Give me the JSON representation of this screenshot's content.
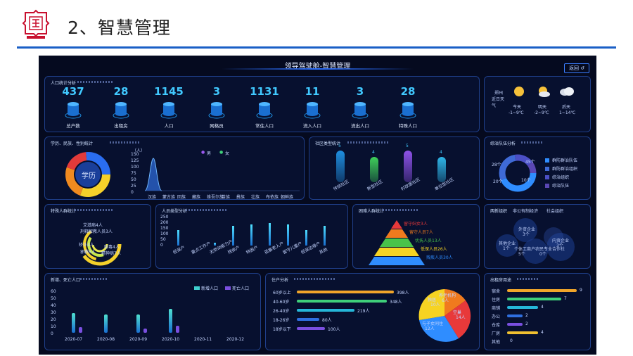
{
  "slide": {
    "title": "2、智慧管理"
  },
  "dashboard": {
    "title": "领导驾驶舱-智慧管理",
    "back_label": "返回 ↺"
  },
  "population": {
    "title": "人口统计分析",
    "stats": [
      {
        "value": "437",
        "label": "总户数"
      },
      {
        "value": "28",
        "label": "出租房"
      },
      {
        "value": "1145",
        "label": "人口"
      },
      {
        "value": "3",
        "label": "网格员"
      },
      {
        "value": "1131",
        "label": "常住人口"
      },
      {
        "value": "11",
        "label": "流入人口"
      },
      {
        "value": "3",
        "label": "流出人口"
      },
      {
        "value": "28",
        "label": "特殊人口"
      }
    ]
  },
  "weather": {
    "city": "郑州",
    "near_days": "近日天气",
    "days": [
      {
        "label": "今天",
        "temp": "-1~9℃",
        "icon": "sun-icon"
      },
      {
        "label": "明天",
        "temp": "-2~9℃",
        "icon": "partly-cloudy-icon"
      },
      {
        "label": "后天",
        "temp": "1~14℃",
        "icon": "cloudy-icon"
      }
    ]
  },
  "ethnic": {
    "title": "学历、民族、性别统计",
    "donut_label": "学历",
    "y_unit": "（人）",
    "legend": [
      "男",
      "女"
    ],
    "y_ticks": [
      "150",
      "125",
      "100",
      "75",
      "50",
      "25",
      "0"
    ],
    "categories": [
      "汉族",
      "蒙古族",
      "回族",
      "藏族",
      "维吾尔族",
      "苗族",
      "彝族",
      "壮族",
      "布依族",
      "朝鲜族"
    ]
  },
  "community": {
    "title": "社区类型统计",
    "bars": [
      {
        "value": "5",
        "label": "传统社区",
        "color": "#1f8fe0"
      },
      {
        "value": "4",
        "label": "新型社区",
        "color": "#3fcf5a"
      },
      {
        "value": "5",
        "label": "村改居社区",
        "color": "#8e52e8"
      },
      {
        "value": "4",
        "label": "单位型社区",
        "color": "#2fb6e8"
      }
    ]
  },
  "volunteer": {
    "title": "综治队伍分析",
    "labels": [
      "28个",
      "45个",
      "20个",
      "10个"
    ],
    "legend": [
      "群防群治队伍",
      "群防群治组织",
      "综治组织",
      "综治队伍"
    ],
    "colors": [
      "#2f8dff",
      "#3f6ad6",
      "#4b4fc6",
      "#5a47b4"
    ]
  },
  "special": {
    "title": "特殊人群统计",
    "labels": [
      "艾滋病4人",
      "刑释解教人员3人",
      "吸毒4人",
      "精神病7人",
      "矫正4人",
      "邪教6人"
    ]
  },
  "household": {
    "title": "人员类型分析",
    "y_ticks": [
      "250",
      "200",
      "150",
      "100",
      "50",
      "0"
    ],
    "categories": [
      "低保户",
      "重点工作户",
      "无劳动能力户",
      "残疾户",
      "特困户",
      "孤寡老人户",
      "留守儿童户",
      "低保边缘户",
      "其他"
    ]
  },
  "poverty": {
    "title": "困难人群统计",
    "levels": [
      {
        "label": "留守妇女3人",
        "color": "#e8393a"
      },
      {
        "label": "留守人员7人",
        "color": "#f07a1e"
      },
      {
        "label": "优抚人员13人",
        "color": "#49c34a"
      },
      {
        "label": "低保人员26人",
        "color": "#f6d322"
      },
      {
        "label": "残疾人员30人",
        "color": "#2f8dff"
      }
    ]
  },
  "org": {
    "title": "两新组织",
    "tabs": [
      "非公有制经济",
      "社会组织"
    ],
    "bubbles": [
      {
        "name": "外资企业",
        "count": "3个"
      },
      {
        "name": "其他企业",
        "count": "1个"
      },
      {
        "name": "个体工商户",
        "count": "5个"
      },
      {
        "name": "农民专业合作社",
        "count": "0个"
      },
      {
        "name": "内资企业",
        "count": "3个"
      }
    ]
  },
  "births": {
    "title": "新增、死亡人口",
    "legend": [
      "新增人口",
      "死亡人口"
    ],
    "y_ticks": [
      "60",
      "50",
      "40",
      "30",
      "20",
      "10",
      "0"
    ],
    "months": [
      "2020-07",
      "2020-08",
      "2020-09",
      "2020-10",
      "2020-11",
      "2020-12"
    ]
  },
  "age": {
    "title": "住户分析",
    "rows": [
      {
        "label": "60岁以上",
        "value": "398人",
        "color": "#f0a52a"
      },
      {
        "label": "40-60岁",
        "value": "348人",
        "color": "#3fcf7a"
      },
      {
        "label": "26-40岁",
        "value": "219人",
        "color": "#25b6d8"
      },
      {
        "label": "18-26岁",
        "value": "80人",
        "color": "#2f6fe0"
      },
      {
        "label": "18岁以下",
        "value": "100人",
        "color": "#7a4fe0"
      }
    ],
    "pie": [
      {
        "label": "养老机构",
        "count": "6人",
        "color": "#f07a1e"
      },
      {
        "label": "空巢",
        "count": "14人",
        "color": "#e8393a"
      },
      {
        "label": "与子女同住",
        "count": "12人",
        "color": "#2f8dff"
      },
      {
        "label": "独居",
        "count": "10人",
        "color": "#f6d322"
      }
    ]
  },
  "rental": {
    "title": "出租房用途",
    "rows": [
      {
        "label": "宿舍",
        "value": "9",
        "color": "#f0a52a"
      },
      {
        "label": "住房",
        "value": "7",
        "color": "#3fcf7a"
      },
      {
        "label": "商铺",
        "value": "4",
        "color": "#25b6d8"
      },
      {
        "label": "办公",
        "value": "2",
        "color": "#2f6fe0"
      },
      {
        "label": "仓库",
        "value": "2",
        "color": "#7a4fe0"
      },
      {
        "label": "厂房",
        "value": "4",
        "color": "#f0c030"
      },
      {
        "label": "其他",
        "value": "0",
        "color": "#3fcf7a"
      }
    ]
  }
}
